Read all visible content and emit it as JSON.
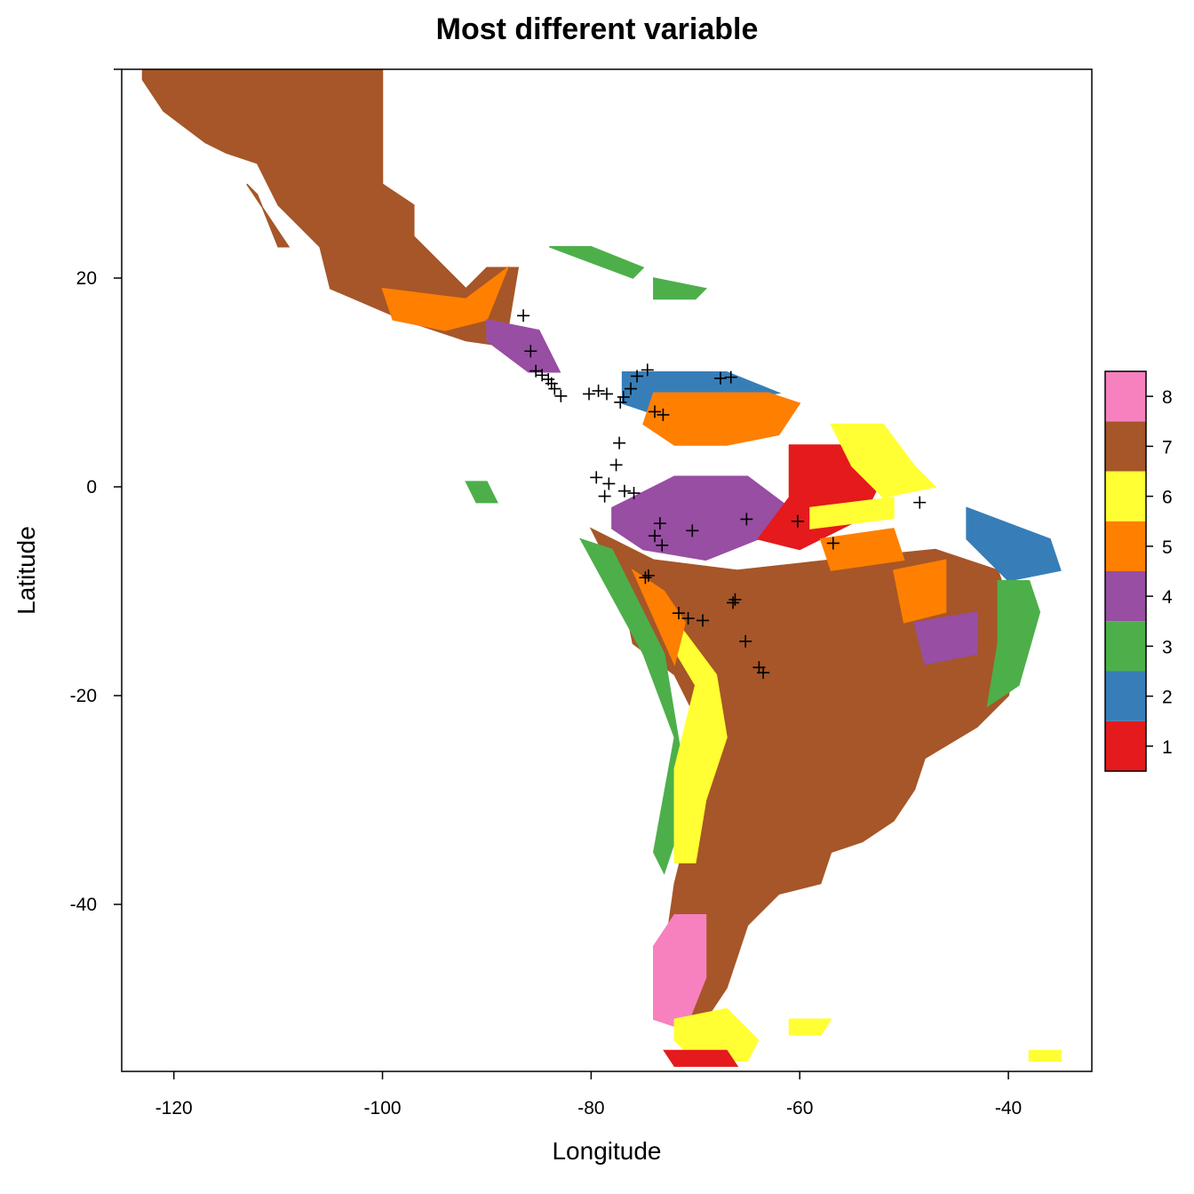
{
  "title": "Most different variable",
  "x_axis": {
    "label": "Longitude",
    "range": [
      -125,
      -32
    ],
    "ticks": [
      -120,
      -100,
      -80,
      -60,
      -40
    ]
  },
  "y_axis": {
    "label": "Latitude",
    "range": [
      -56,
      40
    ],
    "ticks": [
      20,
      0,
      -20,
      -40
    ]
  },
  "legend": {
    "placement": "right",
    "entries": [
      {
        "value": "1",
        "color": "#E41A1C"
      },
      {
        "value": "2",
        "color": "#377EB8"
      },
      {
        "value": "3",
        "color": "#4DAF4A"
      },
      {
        "value": "4",
        "color": "#984EA3"
      },
      {
        "value": "5",
        "color": "#FF7F00"
      },
      {
        "value": "6",
        "color": "#FFFF33"
      },
      {
        "value": "7",
        "color": "#A65628"
      },
      {
        "value": "8",
        "color": "#F781BF"
      }
    ]
  },
  "map_regions": [
    {
      "category": "7",
      "points": [
        [
          -123,
          40
        ],
        [
          -100,
          40
        ],
        [
          -100,
          29
        ],
        [
          -97,
          27
        ],
        [
          -97,
          24
        ],
        [
          -92,
          19
        ],
        [
          -90,
          21
        ],
        [
          -87,
          21
        ],
        [
          -88,
          15
        ],
        [
          -85,
          13
        ],
        [
          -92,
          14
        ],
        [
          -98,
          16
        ],
        [
          -105,
          19
        ],
        [
          -106,
          23
        ],
        [
          -110,
          27
        ],
        [
          -112,
          31
        ],
        [
          -115,
          32
        ],
        [
          -117,
          33
        ],
        [
          -121,
          36
        ],
        [
          -123,
          39
        ]
      ]
    },
    {
      "category": "7",
      "points": [
        [
          -112,
          28
        ],
        [
          -110,
          23
        ],
        [
          -109,
          23
        ],
        [
          -111,
          26
        ],
        [
          -113,
          29
        ]
      ]
    },
    {
      "category": "5",
      "points": [
        [
          -100,
          19
        ],
        [
          -92,
          18
        ],
        [
          -88,
          21
        ],
        [
          -90,
          16
        ],
        [
          -94,
          15
        ],
        [
          -99,
          16
        ]
      ]
    },
    {
      "category": "4",
      "points": [
        [
          -90,
          16
        ],
        [
          -85,
          15
        ],
        [
          -83,
          11
        ],
        [
          -86,
          11
        ],
        [
          -90,
          14
        ]
      ]
    },
    {
      "category": "3",
      "points": [
        [
          -84,
          23
        ],
        [
          -76,
          20
        ],
        [
          -75,
          21
        ],
        [
          -80,
          23
        ]
      ]
    },
    {
      "category": "3",
      "points": [
        [
          -74,
          20
        ],
        [
          -69,
          19
        ],
        [
          -70,
          18
        ],
        [
          -74,
          18
        ]
      ]
    },
    {
      "category": "2",
      "points": [
        [
          -77,
          11
        ],
        [
          -73,
          11
        ],
        [
          -67,
          11
        ],
        [
          -62,
          9
        ],
        [
          -68,
          8
        ],
        [
          -74,
          7
        ],
        [
          -77,
          8
        ]
      ]
    },
    {
      "category": "5",
      "points": [
        [
          -74,
          9
        ],
        [
          -63,
          9
        ],
        [
          -60,
          8
        ],
        [
          -62,
          5
        ],
        [
          -67,
          4
        ],
        [
          -72,
          4
        ],
        [
          -75,
          6
        ]
      ]
    },
    {
      "category": "7",
      "points": [
        [
          -80,
          -4
        ],
        [
          -74,
          -7
        ],
        [
          -66,
          -8
        ],
        [
          -57,
          -7
        ],
        [
          -47,
          -6
        ],
        [
          -41,
          -8
        ],
        [
          -39,
          -14
        ],
        [
          -40,
          -20
        ],
        [
          -43,
          -23
        ],
        [
          -48,
          -26
        ],
        [
          -49,
          -29
        ],
        [
          -51,
          -32
        ],
        [
          -54,
          -34
        ],
        [
          -57,
          -35
        ],
        [
          -58,
          -38
        ],
        [
          -62,
          -39
        ],
        [
          -65,
          -42
        ],
        [
          -66,
          -45
        ],
        [
          -67,
          -48
        ],
        [
          -69,
          -51
        ],
        [
          -72,
          -50
        ],
        [
          -73,
          -45
        ],
        [
          -72,
          -38
        ],
        [
          -70,
          -30
        ],
        [
          -70,
          -22
        ],
        [
          -72,
          -18
        ],
        [
          -76,
          -15
        ],
        [
          -77,
          -10
        ]
      ]
    },
    {
      "category": "4",
      "points": [
        [
          -78,
          -2
        ],
        [
          -72,
          1
        ],
        [
          -65,
          1
        ],
        [
          -61,
          -2
        ],
        [
          -64,
          -5
        ],
        [
          -69,
          -7
        ],
        [
          -75,
          -6
        ],
        [
          -78,
          -4
        ]
      ]
    },
    {
      "category": "1",
      "points": [
        [
          -61,
          4
        ],
        [
          -55,
          4
        ],
        [
          -52,
          1
        ],
        [
          -54,
          -3
        ],
        [
          -60,
          -6
        ],
        [
          -64,
          -5
        ],
        [
          -61,
          -1
        ]
      ]
    },
    {
      "category": "6",
      "points": [
        [
          -59,
          -2
        ],
        [
          -51,
          -1
        ],
        [
          -51,
          -3
        ],
        [
          -59,
          -4
        ]
      ]
    },
    {
      "category": "5",
      "points": [
        [
          -58,
          -5
        ],
        [
          -51,
          -4
        ],
        [
          -50,
          -7
        ],
        [
          -57,
          -8
        ]
      ]
    },
    {
      "category": "5",
      "points": [
        [
          -51,
          -8
        ],
        [
          -46,
          -7
        ],
        [
          -46,
          -12
        ],
        [
          -50,
          -13
        ]
      ]
    },
    {
      "category": "6",
      "points": [
        [
          -57,
          6
        ],
        [
          -52,
          6
        ],
        [
          -49,
          2
        ],
        [
          -47,
          0
        ],
        [
          -52,
          -1
        ],
        [
          -55,
          2
        ]
      ]
    },
    {
      "category": "2",
      "points": [
        [
          -44,
          -2
        ],
        [
          -36,
          -5
        ],
        [
          -35,
          -8
        ],
        [
          -40,
          -9
        ],
        [
          -44,
          -5
        ]
      ]
    },
    {
      "category": "3",
      "points": [
        [
          -41,
          -9
        ],
        [
          -38,
          -9
        ],
        [
          -37,
          -12
        ],
        [
          -39,
          -19
        ],
        [
          -42,
          -21
        ],
        [
          -41,
          -15
        ]
      ]
    },
    {
      "category": "4",
      "points": [
        [
          -49,
          -13
        ],
        [
          -43,
          -12
        ],
        [
          -43,
          -16
        ],
        [
          -48,
          -17
        ]
      ]
    },
    {
      "category": "3",
      "points": [
        [
          -81,
          -5
        ],
        [
          -78,
          -6
        ],
        [
          -73,
          -16
        ],
        [
          -71,
          -28
        ],
        [
          -72,
          -34
        ],
        [
          -73,
          -37
        ],
        [
          -74,
          -35
        ],
        [
          -72,
          -24
        ],
        [
          -75,
          -16
        ]
      ]
    },
    {
      "category": "6",
      "points": [
        [
          -76,
          -8
        ],
        [
          -71,
          -14
        ],
        [
          -68,
          -18
        ],
        [
          -67,
          -24
        ],
        [
          -69,
          -30
        ],
        [
          -70,
          -36
        ],
        [
          -72,
          -36
        ],
        [
          -72,
          -27
        ],
        [
          -70,
          -19
        ],
        [
          -73,
          -14
        ]
      ]
    },
    {
      "category": "8",
      "points": [
        [
          -72,
          -41
        ],
        [
          -69,
          -41
        ],
        [
          -69,
          -47
        ],
        [
          -71,
          -52
        ],
        [
          -74,
          -51
        ],
        [
          -74,
          -44
        ]
      ]
    },
    {
      "category": "6",
      "points": [
        [
          -72,
          -51
        ],
        [
          -67,
          -50
        ],
        [
          -64,
          -53
        ],
        [
          -65,
          -55
        ],
        [
          -70,
          -55
        ],
        [
          -72,
          -53
        ]
      ]
    },
    {
      "category": "5",
      "points": [
        [
          -76,
          -8
        ],
        [
          -73,
          -10
        ],
        [
          -71,
          -13
        ],
        [
          -72,
          -17
        ]
      ]
    },
    {
      "category": "1",
      "points": [
        [
          -73,
          -54
        ],
        [
          -67,
          -54
        ],
        [
          -66,
          -55.5
        ],
        [
          -72,
          -55.5
        ]
      ]
    },
    {
      "category": "3",
      "points": [
        [
          -92,
          0.5
        ],
        [
          -90,
          0.5
        ],
        [
          -89,
          -1.5
        ],
        [
          -91,
          -1.5
        ]
      ]
    },
    {
      "category": "6",
      "points": [
        [
          -61,
          -51
        ],
        [
          -57,
          -51
        ],
        [
          -58,
          -52.5
        ],
        [
          -61,
          -52.5
        ]
      ]
    },
    {
      "category": "6",
      "points": [
        [
          -38,
          -54
        ],
        [
          -35,
          -54
        ],
        [
          -35,
          -55
        ],
        [
          -38,
          -55
        ]
      ]
    }
  ],
  "markers": [
    [
      -86.5,
      16.4
    ],
    [
      -85.8,
      13
    ],
    [
      -85.3,
      11.1
    ],
    [
      -84.7,
      10.7
    ],
    [
      -84.1,
      10.3
    ],
    [
      -83.8,
      9.9
    ],
    [
      -83.5,
      9.4
    ],
    [
      -82.9,
      8.7
    ],
    [
      -80.2,
      8.9
    ],
    [
      -79.3,
      9.2
    ],
    [
      -78.5,
      8.9
    ],
    [
      -77.2,
      8.1
    ],
    [
      -76.9,
      8.6
    ],
    [
      -76.2,
      9.4
    ],
    [
      -75.6,
      10.6
    ],
    [
      -74.6,
      11.2
    ],
    [
      -73.9,
      7.2
    ],
    [
      -73.1,
      6.9
    ],
    [
      -77.3,
      4.2
    ],
    [
      -77.6,
      2.1
    ],
    [
      -78.3,
      0.3
    ],
    [
      -79.5,
      0.9
    ],
    [
      -78.7,
      -0.9
    ],
    [
      -76.8,
      -0.4
    ],
    [
      -75.9,
      -0.6
    ],
    [
      -73.4,
      -3.5
    ],
    [
      -73.9,
      -4.7
    ],
    [
      -73.2,
      -5.6
    ],
    [
      -70.3,
      -4.2
    ],
    [
      -67.6,
      10.4
    ],
    [
      -66.6,
      10.5
    ],
    [
      -65.1,
      -3.1
    ],
    [
      -60.2,
      -3.3
    ],
    [
      -56.8,
      -5.4
    ],
    [
      -48.5,
      -1.5
    ],
    [
      -74.8,
      -8.7
    ],
    [
      -74.5,
      -8.5
    ],
    [
      -71.6,
      -12.1
    ],
    [
      -70.7,
      -12.6
    ],
    [
      -69.3,
      -12.8
    ],
    [
      -66.4,
      -11.1
    ],
    [
      -66.2,
      -10.8
    ],
    [
      -65.2,
      -14.8
    ],
    [
      -63.9,
      -17.3
    ],
    [
      -63.5,
      -17.8
    ]
  ]
}
